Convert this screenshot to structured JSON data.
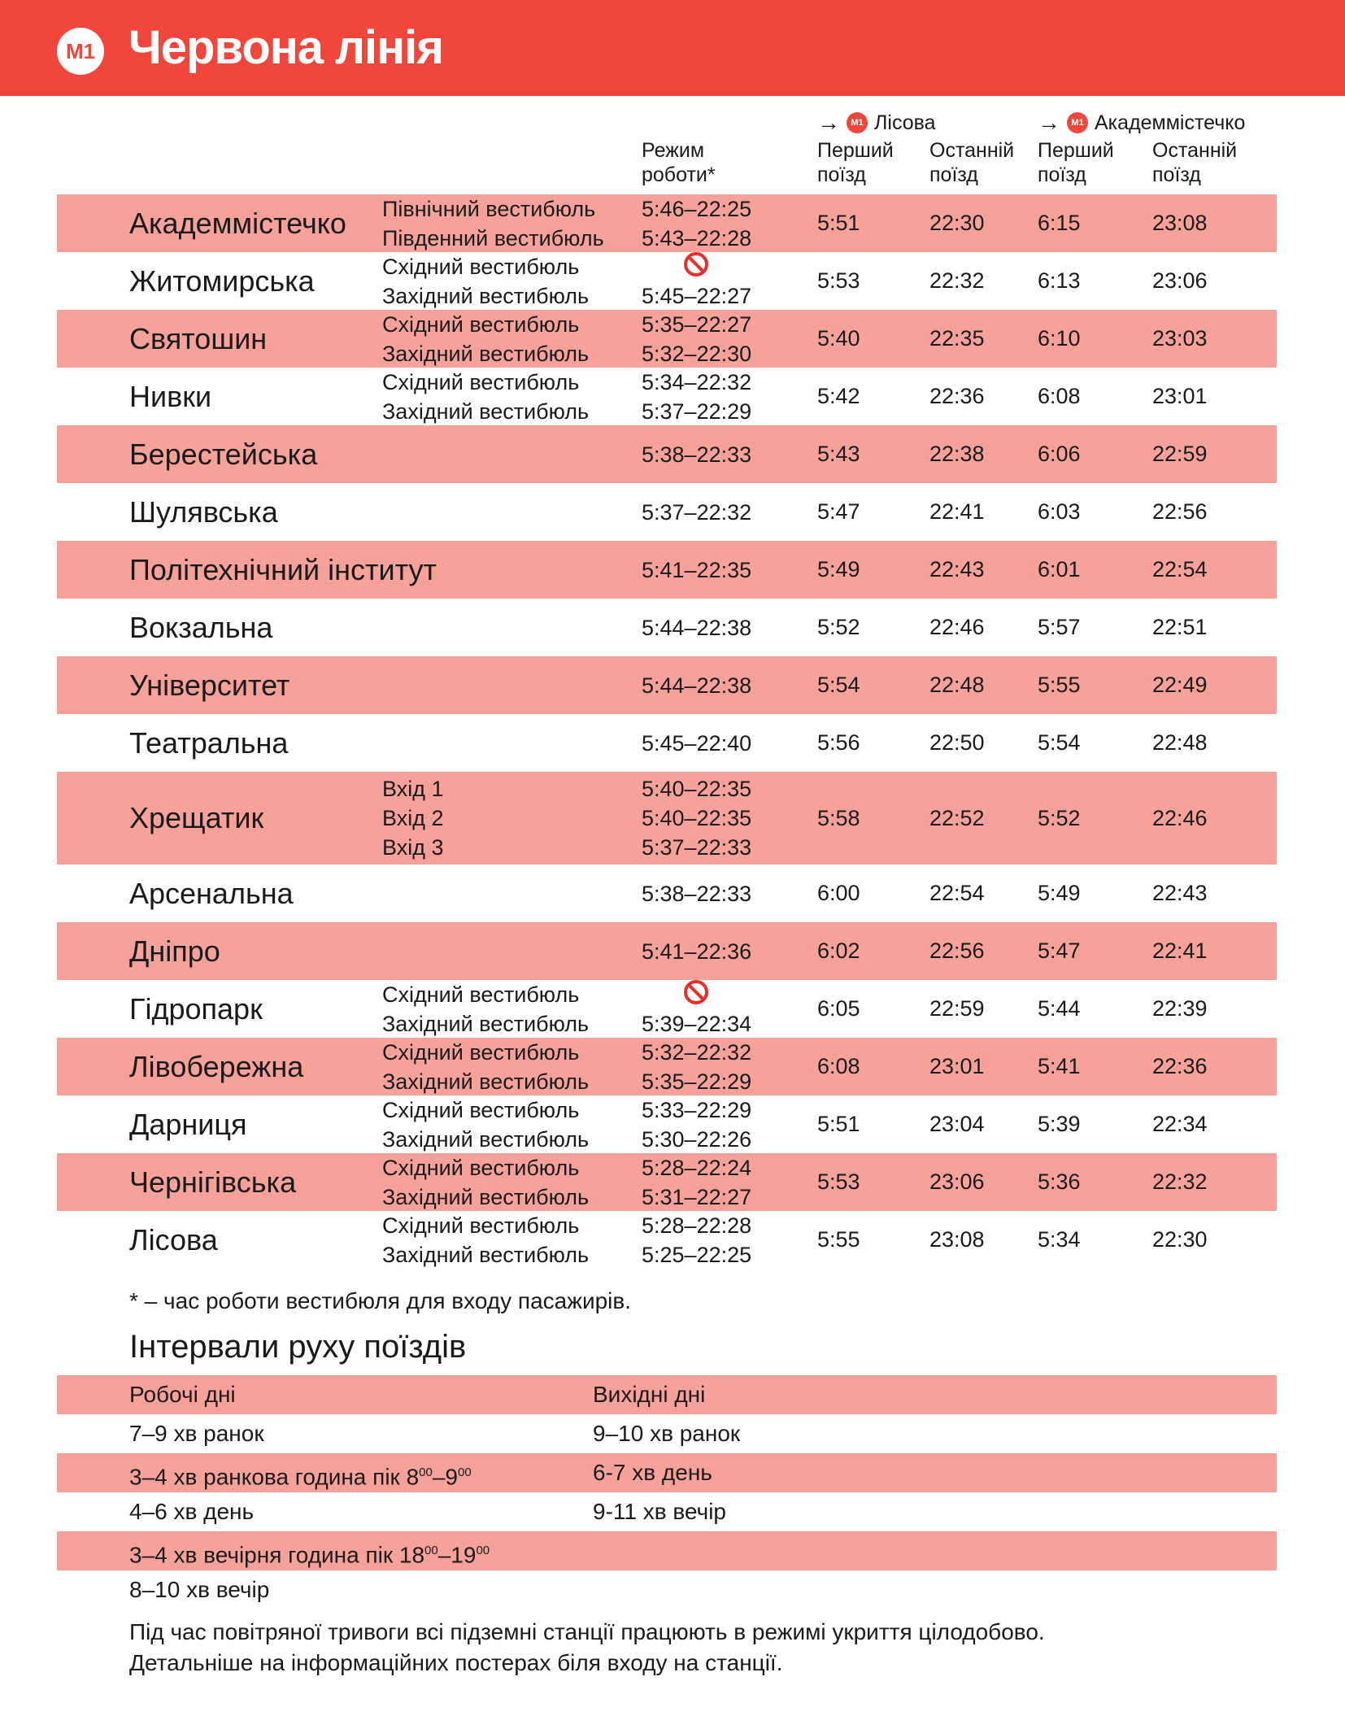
{
  "header": {
    "line_badge": "M1",
    "title": "Червона лінія",
    "color": "#F1463C"
  },
  "directions": [
    {
      "badge": "M1",
      "label": "Лісова",
      "icon": "arrow-right-icon"
    },
    {
      "badge": "M1",
      "label": "Академмістечко",
      "icon": "arrow-right-icon"
    }
  ],
  "columns": {
    "hours": "Режим роботи*",
    "first_1": "Перший поїзд",
    "last_1": "Останній поїзд",
    "first_2": "Перший поїзд",
    "last_2": "Останній поїзд"
  },
  "row_color": "#F6A29B",
  "stations": [
    {
      "name": "Академмістечко",
      "entrances": [
        {
          "label": "Північний вестибюль",
          "hours": "5:46–22:25"
        },
        {
          "label": "Південний вестибюль",
          "hours": "5:43–22:28"
        }
      ],
      "times": [
        "5:51",
        "22:30",
        "6:15",
        "23:08"
      ]
    },
    {
      "name": "Житомирська",
      "entrances": [
        {
          "label": "Східний вестибюль",
          "hours": null,
          "closed_icon": "no-entry-icon"
        },
        {
          "label": "Західний вестибюль",
          "hours": "5:45–22:27"
        }
      ],
      "times": [
        "5:53",
        "22:32",
        "6:13",
        "23:06"
      ]
    },
    {
      "name": "Святошин",
      "entrances": [
        {
          "label": "Східний вестибюль",
          "hours": "5:35–22:27"
        },
        {
          "label": "Західний вестибюль",
          "hours": "5:32–22:30"
        }
      ],
      "times": [
        "5:40",
        "22:35",
        "6:10",
        "23:03"
      ]
    },
    {
      "name": "Нивки",
      "entrances": [
        {
          "label": "Східний вестибюль",
          "hours": "5:34–22:32"
        },
        {
          "label": "Західний вестибюль",
          "hours": "5:37–22:29"
        }
      ],
      "times": [
        "5:42",
        "22:36",
        "6:08",
        "23:01"
      ]
    },
    {
      "name": "Берестейська",
      "entrances": [
        {
          "label": "",
          "hours": "5:38–22:33"
        }
      ],
      "times": [
        "5:43",
        "22:38",
        "6:06",
        "22:59"
      ]
    },
    {
      "name": "Шулявська",
      "entrances": [
        {
          "label": "",
          "hours": "5:37–22:32"
        }
      ],
      "times": [
        "5:47",
        "22:41",
        "6:03",
        "22:56"
      ]
    },
    {
      "name": "Політехнічний інститут",
      "entrances": [
        {
          "label": "",
          "hours": "5:41–22:35"
        }
      ],
      "times": [
        "5:49",
        "22:43",
        "6:01",
        "22:54"
      ]
    },
    {
      "name": "Вокзальна",
      "entrances": [
        {
          "label": "",
          "hours": "5:44–22:38"
        }
      ],
      "times": [
        "5:52",
        "22:46",
        "5:57",
        "22:51"
      ]
    },
    {
      "name": "Університет",
      "entrances": [
        {
          "label": "",
          "hours": "5:44–22:38"
        }
      ],
      "times": [
        "5:54",
        "22:48",
        "5:55",
        "22:49"
      ]
    },
    {
      "name": "Театральна",
      "entrances": [
        {
          "label": "",
          "hours": "5:45–22:40"
        }
      ],
      "times": [
        "5:56",
        "22:50",
        "5:54",
        "22:48"
      ]
    },
    {
      "name": "Хрещатик",
      "entrances": [
        {
          "label": "Вхід 1",
          "hours": "5:40–22:35"
        },
        {
          "label": "Вхід 2",
          "hours": "5:40–22:35"
        },
        {
          "label": "Вхід 3",
          "hours": "5:37–22:33"
        }
      ],
      "times": [
        "5:58",
        "22:52",
        "5:52",
        "22:46"
      ]
    },
    {
      "name": "Арсенальна",
      "entrances": [
        {
          "label": "",
          "hours": "5:38–22:33"
        }
      ],
      "times": [
        "6:00",
        "22:54",
        "5:49",
        "22:43"
      ]
    },
    {
      "name": "Дніпро",
      "entrances": [
        {
          "label": "",
          "hours": "5:41–22:36"
        }
      ],
      "times": [
        "6:02",
        "22:56",
        "5:47",
        "22:41"
      ]
    },
    {
      "name": "Гідропарк",
      "entrances": [
        {
          "label": "Східний вестибюль",
          "hours": null,
          "closed_icon": "no-entry-icon"
        },
        {
          "label": "Західний вестибюль",
          "hours": "5:39–22:34"
        }
      ],
      "times": [
        "6:05",
        "22:59",
        "5:44",
        "22:39"
      ]
    },
    {
      "name": "Лівобережна",
      "entrances": [
        {
          "label": "Східний вестибюль",
          "hours": "5:32–22:32"
        },
        {
          "label": "Західний вестибюль",
          "hours": "5:35–22:29"
        }
      ],
      "times": [
        "6:08",
        "23:01",
        "5:41",
        "22:36"
      ]
    },
    {
      "name": "Дарниця",
      "entrances": [
        {
          "label": "Східний вестибюль",
          "hours": "5:33–22:29"
        },
        {
          "label": "Західний вестибюль",
          "hours": "5:30–22:26"
        }
      ],
      "times": [
        "5:51",
        "23:04",
        "5:39",
        "22:34"
      ]
    },
    {
      "name": "Чернігівська",
      "entrances": [
        {
          "label": "Східний вестибюль",
          "hours": "5:28–22:24"
        },
        {
          "label": "Західний вестибюль",
          "hours": "5:31–22:27"
        }
      ],
      "times": [
        "5:53",
        "23:06",
        "5:36",
        "22:32"
      ]
    },
    {
      "name": "Лісова",
      "entrances": [
        {
          "label": "Східний вестибюль",
          "hours": "5:28–22:28"
        },
        {
          "label": "Західний вестибюль",
          "hours": "5:25–22:25"
        }
      ],
      "times": [
        "5:55",
        "23:08",
        "5:34",
        "22:30"
      ]
    }
  ],
  "footnote": "* – час роботи вестибюля для входу пасажирів.",
  "intervals": {
    "title": "Інтервали руху поїздів",
    "headers": [
      "Робочі дні",
      "Вихідні дні"
    ],
    "rows": [
      {
        "weekday": "7–9 хв ранок",
        "weekend": "9–10 хв ранок"
      },
      {
        "weekday": "3–4 хв ранкова година пік 8",
        "weekday_sup": [
          "00",
          "00"
        ],
        "weekday_mid": "–9",
        "weekend": "6-7 хв день"
      },
      {
        "weekday": "4–6 хв день",
        "weekend": "9-11 хв вечір"
      },
      {
        "weekday": "3–4 хв вечірня година пік 18",
        "weekday_sup": [
          "00",
          "00"
        ],
        "weekday_mid": "–19",
        "weekend": ""
      },
      {
        "weekday": "8–10 хв вечір",
        "weekend": ""
      }
    ]
  },
  "notes": [
    "Під час повітряної тривоги всі підземні станції працюють в режимі укриття цілодобово.",
    "Детальніше на інформаційних постерах біля входу на станції."
  ]
}
